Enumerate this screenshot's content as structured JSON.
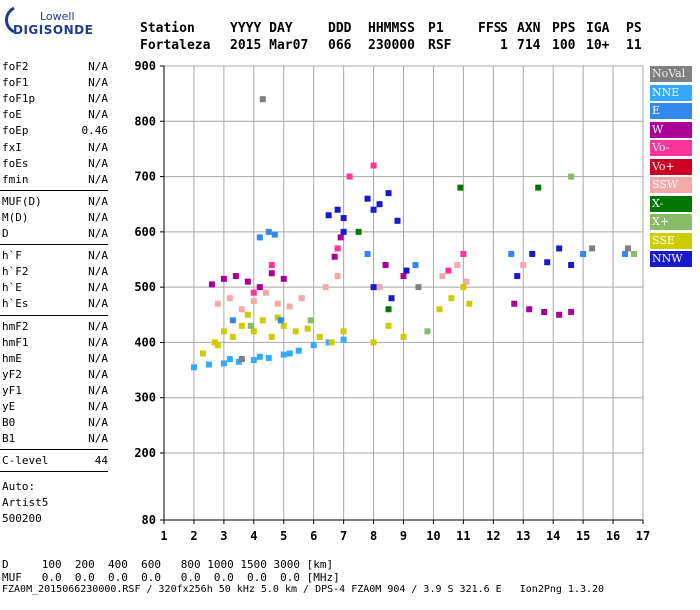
{
  "logo": {
    "brand": "Lowell",
    "product": "DIGISONDE"
  },
  "header": {
    "labels": [
      "Station",
      "YYYY DAY",
      "DDD",
      "HHMMSS",
      "P1",
      "FFS",
      "S",
      "AXN",
      "PPS",
      "IGA",
      "PS"
    ],
    "values": [
      "Fortaleza",
      "2015 Mar07",
      "066",
      "230000",
      "RSF",
      "",
      "1",
      "714",
      "100",
      "10+",
      "11"
    ]
  },
  "params": {
    "group1": [
      {
        "label": "foF2",
        "value": "N/A"
      },
      {
        "label": "foF1",
        "value": "N/A"
      },
      {
        "label": "foF1p",
        "value": "N/A"
      },
      {
        "label": "foE",
        "value": "N/A"
      },
      {
        "label": "foEp",
        "value": "0.46"
      },
      {
        "label": "fxI",
        "value": "N/A"
      },
      {
        "label": "foEs",
        "value": "N/A"
      },
      {
        "label": "fmin",
        "value": "N/A"
      }
    ],
    "group2": [
      {
        "label": "MUF(D)",
        "value": "N/A"
      },
      {
        "label": "M(D)",
        "value": "N/A"
      },
      {
        "label": "D",
        "value": "N/A"
      }
    ],
    "group3": [
      {
        "label": "h`F",
        "value": "N/A"
      },
      {
        "label": "h`F2",
        "value": "N/A"
      },
      {
        "label": "h`E",
        "value": "N/A"
      },
      {
        "label": "h`Es",
        "value": "N/A"
      }
    ],
    "group4": [
      {
        "label": "hmF2",
        "value": "N/A"
      },
      {
        "label": "hmF1",
        "value": "N/A"
      },
      {
        "label": "hmE",
        "value": "N/A"
      },
      {
        "label": "yF2",
        "value": "N/A"
      },
      {
        "label": "yF1",
        "value": "N/A"
      },
      {
        "label": "yE",
        "value": "N/A"
      },
      {
        "label": "B0",
        "value": "N/A"
      },
      {
        "label": "B1",
        "value": "N/A"
      }
    ],
    "clevel": {
      "label": "C-level",
      "value": "44"
    },
    "autoscale": [
      "Auto:",
      "Artist5",
      "500200"
    ]
  },
  "legend": [
    {
      "label": "NoVal",
      "color": "#808080"
    },
    {
      "label": "NNE",
      "color": "#33aaff"
    },
    {
      "label": "E",
      "color": "#3388ee"
    },
    {
      "label": "W",
      "color": "#aa0099"
    },
    {
      "label": "Vo-",
      "color": "#ff3399"
    },
    {
      "label": "Vo+",
      "color": "#cc0022"
    },
    {
      "label": "SSW",
      "color": "#f4a8a8"
    },
    {
      "label": "X-",
      "color": "#007700"
    },
    {
      "label": "X+",
      "color": "#88bb66"
    },
    {
      "label": "SSE",
      "color": "#cccc00"
    },
    {
      "label": "NNW",
      "color": "#1818cc"
    }
  ],
  "footer": {
    "line1": "D     100  200  400  600   800 1000 1500 3000 [km]",
    "line2": "MUF   0.0  0.0  0.0  0.0   0.0  0.0  0.0  0.0 [MHz]",
    "line3": "FZA0M_2015066230000.RSF / 320fx256h 50 kHz 5.0 km / DPS-4 FZA0M 904 / 3.9 S 321.6 E   Ion2Png 1.3.20"
  },
  "chart_data": {
    "type": "scatter",
    "title": "",
    "xlabel": "",
    "ylabel": "",
    "xlim": [
      1,
      17
    ],
    "ylim": [
      80,
      900
    ],
    "x_ticks": [
      1,
      2,
      3,
      4,
      5,
      6,
      7,
      8,
      9,
      10,
      11,
      12,
      13,
      14,
      15,
      16,
      17
    ],
    "y_ticks": [
      80,
      200,
      300,
      400,
      500,
      600,
      700,
      800,
      900
    ],
    "grid": true,
    "series": [
      {
        "name": "NNE",
        "points": [
          [
            2.0,
            355
          ],
          [
            2.5,
            360
          ],
          [
            3.0,
            362
          ],
          [
            3.5,
            365
          ],
          [
            4.0,
            368
          ],
          [
            4.5,
            372
          ],
          [
            5.0,
            378
          ],
          [
            5.5,
            385
          ],
          [
            6.0,
            395
          ],
          [
            6.5,
            400
          ],
          [
            7.0,
            405
          ],
          [
            3.2,
            370
          ],
          [
            4.2,
            374
          ],
          [
            5.2,
            380
          ]
        ]
      },
      {
        "name": "SSE",
        "points": [
          [
            2.3,
            380
          ],
          [
            2.7,
            400
          ],
          [
            3.0,
            420
          ],
          [
            3.3,
            410
          ],
          [
            3.6,
            430
          ],
          [
            4.0,
            420
          ],
          [
            4.3,
            440
          ],
          [
            4.6,
            410
          ],
          [
            5.0,
            430
          ],
          [
            5.4,
            420
          ],
          [
            5.8,
            425
          ],
          [
            6.2,
            410
          ],
          [
            6.6,
            400
          ],
          [
            7.0,
            420
          ],
          [
            8.0,
            400
          ],
          [
            8.5,
            430
          ],
          [
            9.0,
            410
          ],
          [
            10.2,
            460
          ],
          [
            10.6,
            480
          ],
          [
            11.0,
            500
          ],
          [
            11.2,
            470
          ],
          [
            3.8,
            450
          ],
          [
            4.8,
            445
          ],
          [
            2.8,
            395
          ]
        ]
      },
      {
        "name": "SSW",
        "points": [
          [
            2.8,
            470
          ],
          [
            3.2,
            480
          ],
          [
            3.6,
            460
          ],
          [
            4.0,
            475
          ],
          [
            4.4,
            490
          ],
          [
            4.8,
            470
          ],
          [
            5.2,
            465
          ],
          [
            5.6,
            480
          ],
          [
            6.4,
            500
          ],
          [
            6.8,
            520
          ],
          [
            8.2,
            500
          ],
          [
            10.3,
            520
          ],
          [
            10.8,
            540
          ],
          [
            11.1,
            510
          ],
          [
            13.0,
            540
          ]
        ]
      },
      {
        "name": "W",
        "points": [
          [
            2.6,
            505
          ],
          [
            3.0,
            515
          ],
          [
            3.4,
            520
          ],
          [
            3.8,
            510
          ],
          [
            4.2,
            500
          ],
          [
            4.6,
            525
          ],
          [
            5.0,
            515
          ],
          [
            6.7,
            555
          ],
          [
            6.9,
            590
          ],
          [
            12.7,
            470
          ],
          [
            13.2,
            460
          ],
          [
            13.7,
            455
          ],
          [
            14.2,
            450
          ],
          [
            14.6,
            455
          ],
          [
            8.4,
            540
          ],
          [
            9.0,
            520
          ]
        ]
      },
      {
        "name": "NNW",
        "points": [
          [
            6.5,
            630
          ],
          [
            6.8,
            640
          ],
          [
            7.0,
            625
          ],
          [
            7.8,
            660
          ],
          [
            8.0,
            640
          ],
          [
            8.2,
            650
          ],
          [
            8.5,
            670
          ],
          [
            8.8,
            620
          ],
          [
            8.0,
            500
          ],
          [
            8.6,
            480
          ],
          [
            9.1,
            530
          ],
          [
            12.8,
            520
          ],
          [
            13.3,
            560
          ],
          [
            13.8,
            545
          ],
          [
            14.2,
            570
          ],
          [
            14.6,
            540
          ],
          [
            7.0,
            600
          ]
        ]
      },
      {
        "name": "E",
        "points": [
          [
            4.2,
            590
          ],
          [
            4.5,
            600
          ],
          [
            4.7,
            595
          ],
          [
            3.3,
            440
          ],
          [
            4.9,
            440
          ],
          [
            7.8,
            560
          ],
          [
            9.4,
            540
          ],
          [
            12.6,
            560
          ],
          [
            15.0,
            560
          ],
          [
            16.4,
            560
          ]
        ]
      },
      {
        "name": "Vo-",
        "points": [
          [
            4.0,
            490
          ],
          [
            4.6,
            540
          ],
          [
            6.8,
            570
          ],
          [
            10.5,
            530
          ],
          [
            11.0,
            560
          ],
          [
            7.2,
            700
          ],
          [
            8.0,
            720
          ]
        ]
      },
      {
        "name": "X-",
        "points": [
          [
            7.5,
            600
          ],
          [
            10.9,
            680
          ],
          [
            13.5,
            680
          ],
          [
            8.5,
            460
          ]
        ]
      },
      {
        "name": "X+",
        "points": [
          [
            3.9,
            430
          ],
          [
            5.9,
            440
          ],
          [
            9.8,
            420
          ],
          [
            14.6,
            700
          ],
          [
            16.7,
            560
          ]
        ]
      },
      {
        "name": "NoVal",
        "points": [
          [
            3.6,
            370
          ],
          [
            9.5,
            500
          ],
          [
            15.3,
            570
          ],
          [
            16.5,
            570
          ],
          [
            4.3,
            840
          ]
        ]
      }
    ]
  }
}
